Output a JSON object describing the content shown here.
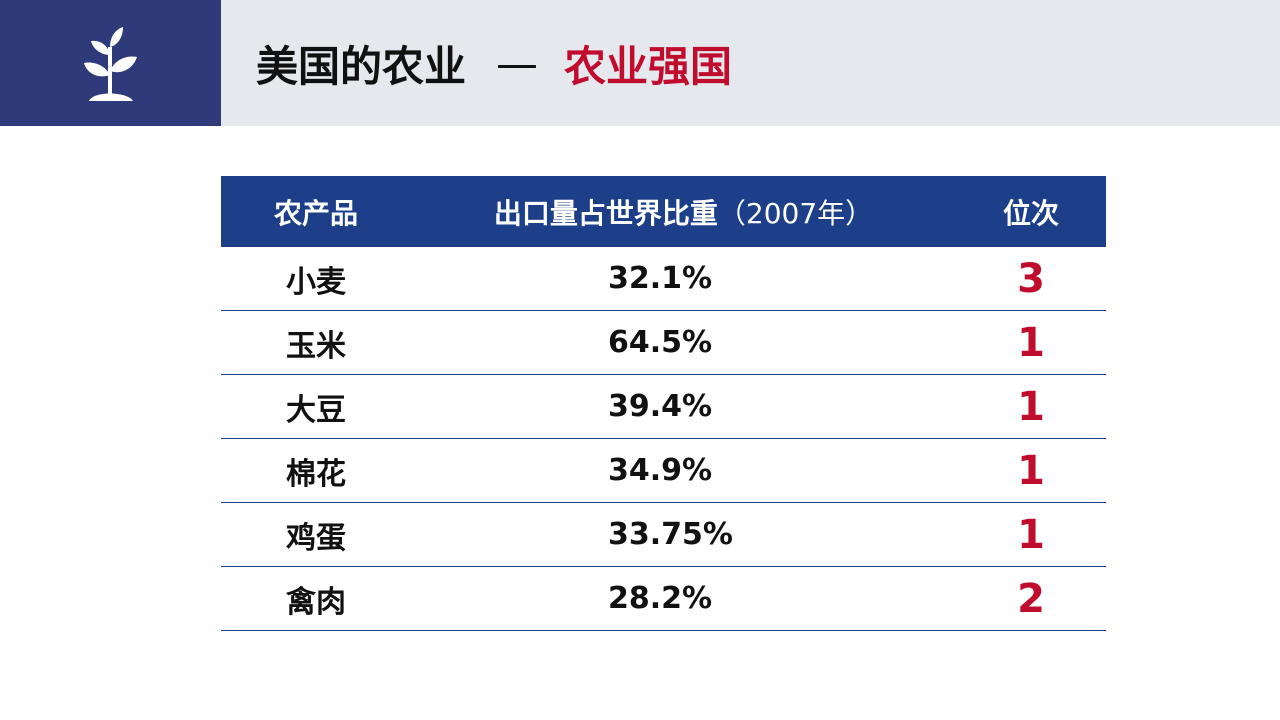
{
  "header": {
    "icon": "sprout-icon",
    "title_main": "美国的农业",
    "title_dash": "—",
    "title_accent": "农业强国",
    "accent_color": "#c00d2e",
    "brand_color": "#2e3a7a"
  },
  "table": {
    "headers": {
      "product": "农产品",
      "share": "出口量占世界比重",
      "share_year": "（2007年）",
      "rank": "位次"
    },
    "rows": [
      {
        "product": "小麦",
        "share": "32.1%",
        "rank": "3"
      },
      {
        "product": "玉米",
        "share": "64.5%",
        "rank": "1"
      },
      {
        "product": "大豆",
        "share": "39.4%",
        "rank": "1"
      },
      {
        "product": "棉花",
        "share": "34.9%",
        "rank": "1"
      },
      {
        "product": "鸡蛋",
        "share": "33.75%",
        "rank": "1"
      },
      {
        "product": "禽肉",
        "share": "28.2%",
        "rank": "2"
      }
    ]
  }
}
